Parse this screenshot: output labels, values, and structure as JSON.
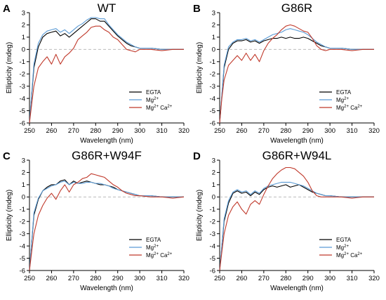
{
  "figure": {
    "legend_labels": [
      "EGTA",
      "Mg2+",
      "Mg2+ Ca2+"
    ]
  },
  "chart_data": [
    {
      "type": "line",
      "panel": "A",
      "title": "WT",
      "xlabel": "Wavelength (nm)",
      "ylabel": "Ellipticity (mdeg)",
      "xlim": [
        250,
        320
      ],
      "ylim": [
        -6,
        3
      ],
      "xticks": [
        250,
        260,
        270,
        280,
        290,
        300,
        310,
        320
      ],
      "yticks": [
        -6,
        -5,
        -4,
        -3,
        -2,
        -1,
        0,
        1,
        2,
        3
      ],
      "legend_position": "bottom-right",
      "zero_line": true,
      "series": [
        {
          "name": "EGTA",
          "color": "#000000",
          "x": [
            250,
            252,
            254,
            256,
            258,
            260,
            262,
            264,
            266,
            268,
            270,
            272,
            274,
            276,
            278,
            280,
            282,
            284,
            286,
            288,
            290,
            292,
            294,
            296,
            298,
            300,
            305,
            310,
            315,
            320
          ],
          "y": [
            -6,
            -1.5,
            0.2,
            1.0,
            1.3,
            1.4,
            1.5,
            1.1,
            1.3,
            1.0,
            1.3,
            1.6,
            1.9,
            2.2,
            2.5,
            2.5,
            2.3,
            2.3,
            1.9,
            1.5,
            1.1,
            0.8,
            0.5,
            0.3,
            0.2,
            0.1,
            0.1,
            0.0,
            0.0,
            0.0
          ]
        },
        {
          "name": "Mg2+",
          "color": "#5b9bd5",
          "x": [
            250,
            252,
            254,
            256,
            258,
            260,
            262,
            264,
            266,
            268,
            270,
            272,
            274,
            276,
            278,
            280,
            282,
            284,
            286,
            288,
            290,
            292,
            294,
            296,
            298,
            300,
            305,
            310,
            315,
            320
          ],
          "y": [
            -6,
            -1.2,
            0.5,
            1.2,
            1.5,
            1.6,
            1.7,
            1.4,
            1.6,
            1.3,
            1.6,
            1.9,
            2.1,
            2.4,
            2.6,
            2.6,
            2.5,
            2.5,
            2.0,
            1.6,
            1.2,
            0.9,
            0.6,
            0.4,
            0.2,
            0.1,
            0.1,
            0.0,
            0.0,
            0.0
          ]
        },
        {
          "name": "Mg2+ Ca2+",
          "color": "#c0392b",
          "x": [
            250,
            251,
            252,
            254,
            256,
            258,
            260,
            262,
            264,
            266,
            268,
            270,
            272,
            274,
            276,
            278,
            280,
            282,
            284,
            286,
            288,
            290,
            292,
            294,
            296,
            298,
            300,
            305,
            310,
            315,
            320
          ],
          "y": [
            -6,
            -4.5,
            -3.0,
            -1.5,
            -1.0,
            -0.6,
            -1.2,
            -0.4,
            -1.2,
            -0.6,
            -0.3,
            0.1,
            0.8,
            1.1,
            1.4,
            1.8,
            1.9,
            1.9,
            1.6,
            1.4,
            1.0,
            0.8,
            0.4,
            0.0,
            -0.1,
            -0.2,
            0.0,
            0.0,
            -0.1,
            0.0,
            0.0
          ]
        }
      ]
    },
    {
      "type": "line",
      "panel": "B",
      "title": "G86R",
      "xlabel": "Wavelength (nm)",
      "ylabel": "Ellipticity (mdeg)",
      "xlim": [
        250,
        320
      ],
      "ylim": [
        -6,
        3
      ],
      "xticks": [
        250,
        260,
        270,
        280,
        290,
        300,
        310,
        320
      ],
      "yticks": [
        -6,
        -5,
        -4,
        -3,
        -2,
        -1,
        0,
        1,
        2,
        3
      ],
      "legend_position": "bottom-right",
      "zero_line": true,
      "series": [
        {
          "name": "EGTA",
          "color": "#000000",
          "x": [
            250,
            252,
            254,
            256,
            258,
            260,
            262,
            264,
            266,
            268,
            270,
            272,
            274,
            276,
            278,
            280,
            282,
            284,
            286,
            288,
            290,
            292,
            294,
            296,
            298,
            300,
            305,
            310,
            315,
            320
          ],
          "y": [
            -6,
            -1.5,
            0.0,
            0.5,
            0.7,
            0.7,
            0.8,
            0.6,
            0.7,
            0.5,
            0.7,
            0.8,
            0.9,
            0.9,
            1.0,
            0.9,
            1.0,
            0.9,
            0.9,
            1.0,
            0.9,
            0.7,
            0.5,
            0.3,
            0.2,
            0.1,
            0.1,
            0.0,
            0.0,
            0.0
          ]
        },
        {
          "name": "Mg2+",
          "color": "#5b9bd5",
          "x": [
            250,
            252,
            254,
            256,
            258,
            260,
            262,
            264,
            266,
            268,
            270,
            272,
            274,
            276,
            278,
            280,
            282,
            284,
            286,
            288,
            290,
            292,
            294,
            296,
            298,
            300,
            305,
            310,
            315,
            320
          ],
          "y": [
            -6,
            -1.3,
            0.2,
            0.6,
            0.8,
            0.8,
            0.9,
            0.7,
            0.8,
            0.6,
            0.8,
            1.0,
            1.2,
            1.3,
            1.4,
            1.6,
            1.7,
            1.6,
            1.5,
            1.4,
            1.2,
            0.9,
            0.6,
            0.4,
            0.2,
            0.1,
            0.1,
            0.0,
            0.0,
            0.0
          ]
        },
        {
          "name": "Mg2+ Ca2+",
          "color": "#c0392b",
          "x": [
            250,
            251,
            252,
            254,
            256,
            258,
            260,
            262,
            264,
            266,
            268,
            270,
            272,
            274,
            276,
            278,
            280,
            282,
            284,
            286,
            288,
            290,
            292,
            294,
            296,
            298,
            300,
            305,
            310,
            315,
            320
          ],
          "y": [
            -6,
            -4.0,
            -2.5,
            -1.3,
            -0.9,
            -0.5,
            -0.9,
            -0.3,
            -0.9,
            -0.4,
            -1.0,
            -0.1,
            0.5,
            0.9,
            1.2,
            1.6,
            1.9,
            2.0,
            1.9,
            1.7,
            1.5,
            1.4,
            0.9,
            0.3,
            0.0,
            -0.1,
            0.0,
            0.0,
            -0.1,
            0.0,
            0.0
          ]
        }
      ]
    },
    {
      "type": "line",
      "panel": "C",
      "title": "G86R+W94F",
      "xlabel": "Wavelength (nm)",
      "ylabel": "Ellipticity (mdeg)",
      "xlim": [
        250,
        320
      ],
      "ylim": [
        -6,
        3
      ],
      "xticks": [
        250,
        260,
        270,
        280,
        290,
        300,
        310,
        320
      ],
      "yticks": [
        -6,
        -5,
        -4,
        -3,
        -2,
        -1,
        0,
        1,
        2,
        3
      ],
      "legend_position": "bottom-right",
      "zero_line": true,
      "series": [
        {
          "name": "EGTA",
          "color": "#000000",
          "x": [
            250,
            252,
            254,
            256,
            258,
            260,
            262,
            264,
            266,
            268,
            270,
            272,
            274,
            276,
            278,
            280,
            282,
            284,
            286,
            288,
            290,
            292,
            294,
            296,
            298,
            300,
            305,
            310,
            315,
            320
          ],
          "y": [
            -6,
            -1.5,
            -0.2,
            0.5,
            0.8,
            1.0,
            1.0,
            1.3,
            1.4,
            1.0,
            1.3,
            1.1,
            1.2,
            1.3,
            1.2,
            1.1,
            1.0,
            1.0,
            0.9,
            0.8,
            0.6,
            0.5,
            0.4,
            0.3,
            0.2,
            0.1,
            0.1,
            0.0,
            0.0,
            0.0
          ]
        },
        {
          "name": "Mg2+",
          "color": "#5b9bd5",
          "x": [
            250,
            252,
            254,
            256,
            258,
            260,
            262,
            264,
            266,
            268,
            270,
            272,
            274,
            276,
            278,
            280,
            282,
            284,
            286,
            288,
            290,
            292,
            294,
            296,
            298,
            300,
            305,
            310,
            315,
            320
          ],
          "y": [
            -6,
            -1.3,
            -0.1,
            0.5,
            0.7,
            0.9,
            1.0,
            1.2,
            1.3,
            1.0,
            1.2,
            1.1,
            1.1,
            1.2,
            1.2,
            1.1,
            1.1,
            1.0,
            0.9,
            0.7,
            0.6,
            0.5,
            0.4,
            0.3,
            0.2,
            0.1,
            0.1,
            0.0,
            0.0,
            0.0
          ]
        },
        {
          "name": "Mg2+ Ca2+",
          "color": "#c0392b",
          "x": [
            250,
            251,
            252,
            254,
            256,
            258,
            260,
            262,
            264,
            266,
            268,
            270,
            272,
            274,
            276,
            278,
            280,
            282,
            284,
            286,
            288,
            290,
            292,
            294,
            296,
            298,
            300,
            305,
            310,
            315,
            320
          ],
          "y": [
            -6,
            -4.5,
            -3.0,
            -1.5,
            -0.7,
            -0.1,
            0.3,
            -0.2,
            0.5,
            1.0,
            0.4,
            1.0,
            1.2,
            1.5,
            1.6,
            1.9,
            1.8,
            1.7,
            1.6,
            1.3,
            1.0,
            0.8,
            0.5,
            0.3,
            0.2,
            0.1,
            0.1,
            0.0,
            0.0,
            -0.1,
            0.0
          ]
        }
      ]
    },
    {
      "type": "line",
      "panel": "D",
      "title": "G86R+W94L",
      "xlabel": "Wavelength (nm)",
      "ylabel": "Ellipticity (mdeg)",
      "xlim": [
        250,
        320
      ],
      "ylim": [
        -6,
        3
      ],
      "xticks": [
        250,
        260,
        270,
        280,
        290,
        300,
        310,
        320
      ],
      "yticks": [
        -6,
        -5,
        -4,
        -3,
        -2,
        -1,
        0,
        1,
        2,
        3
      ],
      "legend_position": "bottom-right",
      "zero_line": true,
      "series": [
        {
          "name": "EGTA",
          "color": "#000000",
          "x": [
            250,
            252,
            254,
            256,
            258,
            260,
            262,
            264,
            266,
            268,
            270,
            272,
            274,
            276,
            278,
            280,
            282,
            284,
            286,
            288,
            290,
            292,
            294,
            296,
            298,
            300,
            305,
            310,
            315,
            320
          ],
          "y": [
            -6,
            -2.0,
            -0.5,
            0.3,
            0.5,
            0.3,
            0.4,
            0.1,
            0.4,
            0.2,
            0.6,
            0.8,
            0.9,
            0.8,
            0.9,
            1.0,
            0.8,
            0.9,
            1.0,
            0.8,
            0.6,
            0.4,
            0.3,
            0.2,
            0.1,
            0.1,
            0.0,
            0.0,
            0.0,
            0.0
          ]
        },
        {
          "name": "Mg2+",
          "color": "#5b9bd5",
          "x": [
            250,
            252,
            254,
            256,
            258,
            260,
            262,
            264,
            266,
            268,
            270,
            272,
            274,
            276,
            278,
            280,
            282,
            284,
            286,
            288,
            290,
            292,
            294,
            296,
            298,
            300,
            305,
            310,
            315,
            320
          ],
          "y": [
            -6,
            -1.8,
            -0.3,
            0.4,
            0.6,
            0.4,
            0.5,
            0.2,
            0.5,
            0.3,
            0.7,
            0.9,
            1.0,
            1.1,
            1.2,
            1.2,
            1.2,
            1.1,
            1.0,
            0.9,
            0.7,
            0.5,
            0.3,
            0.2,
            0.1,
            0.1,
            0.0,
            0.0,
            0.0,
            0.0
          ]
        },
        {
          "name": "Mg2+ Ca2+",
          "color": "#c0392b",
          "x": [
            250,
            251,
            252,
            254,
            256,
            258,
            260,
            262,
            264,
            266,
            268,
            270,
            272,
            274,
            276,
            278,
            280,
            282,
            284,
            286,
            288,
            290,
            292,
            294,
            296,
            298,
            300,
            305,
            310,
            315,
            320
          ],
          "y": [
            -6,
            -4.5,
            -3.0,
            -1.5,
            -0.8,
            -0.4,
            -1.0,
            -1.4,
            -0.6,
            -0.3,
            -0.6,
            0.2,
            0.9,
            1.5,
            1.9,
            2.2,
            2.4,
            2.4,
            2.3,
            2.0,
            1.7,
            1.2,
            0.5,
            0.1,
            0.0,
            0.0,
            0.0,
            0.0,
            -0.1,
            0.0,
            0.0
          ]
        }
      ]
    }
  ]
}
